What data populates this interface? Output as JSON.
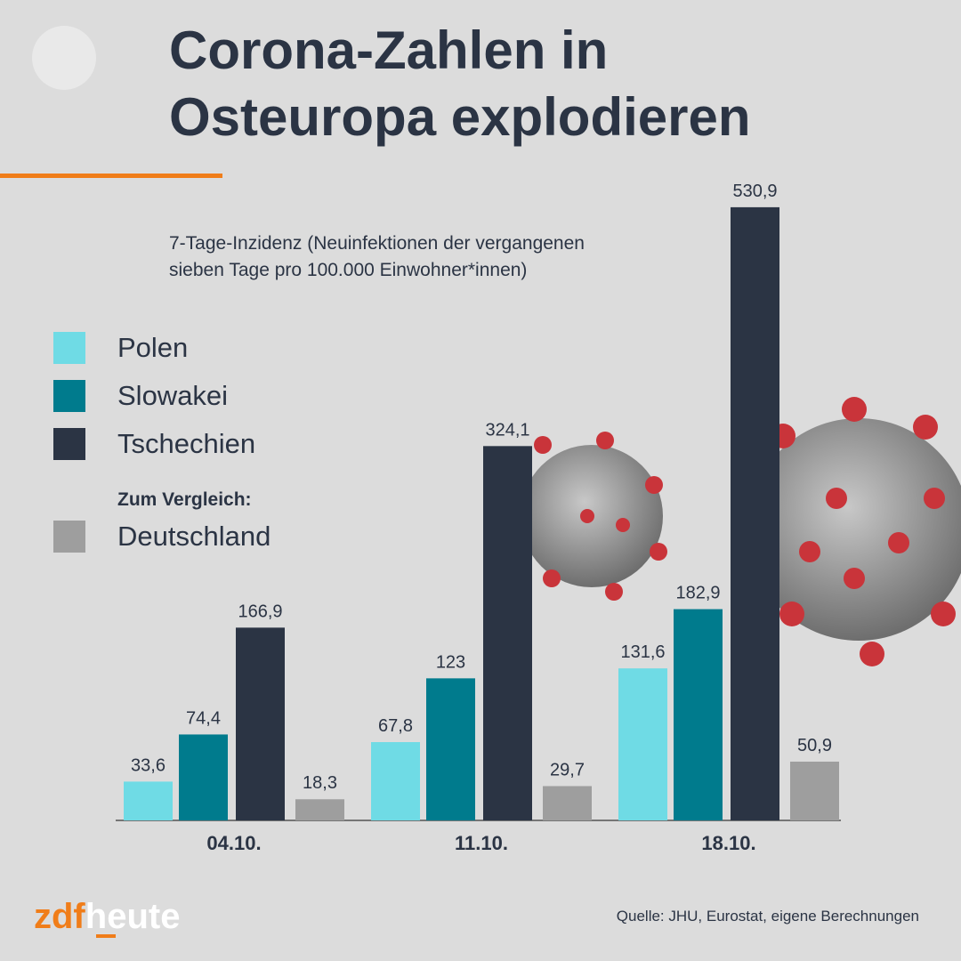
{
  "chart_data": {
    "type": "bar",
    "title": [
      "Corona-Zahlen in",
      "Osteuropa explodieren"
    ],
    "subtitle": [
      "7-Tage-Inzidenz (Neuinfektionen der vergangenen",
      "sieben Tage pro 100.000 Einwohner*innen)"
    ],
    "categories": [
      "04.10.",
      "11.10.",
      "18.10."
    ],
    "series": [
      {
        "name": "Polen",
        "color": "#6fdbe5",
        "values": [
          33.6,
          67.8,
          131.6
        ],
        "value_labels": [
          "33,6",
          "67,8",
          "131,6"
        ]
      },
      {
        "name": "Slowakei",
        "color": "#007b8d",
        "values": [
          74.4,
          123,
          182.9
        ],
        "value_labels": [
          "74,4",
          "123",
          "182,9"
        ]
      },
      {
        "name": "Tschechien",
        "color": "#2b3444",
        "values": [
          166.9,
          324.1,
          530.9
        ],
        "value_labels": [
          "166,9",
          "324,1",
          "530,9"
        ]
      },
      {
        "name": "Deutschland",
        "color": "#9e9e9e",
        "values": [
          18.3,
          29.7,
          50.9
        ],
        "value_labels": [
          "18,3",
          "29,7",
          "50,9"
        ]
      }
    ],
    "legend_note": "Zum Vergleich:",
    "source": "Quelle: JHU, Eurostat, eigene Berechnungen",
    "logo": [
      "zdf",
      "heute"
    ]
  }
}
